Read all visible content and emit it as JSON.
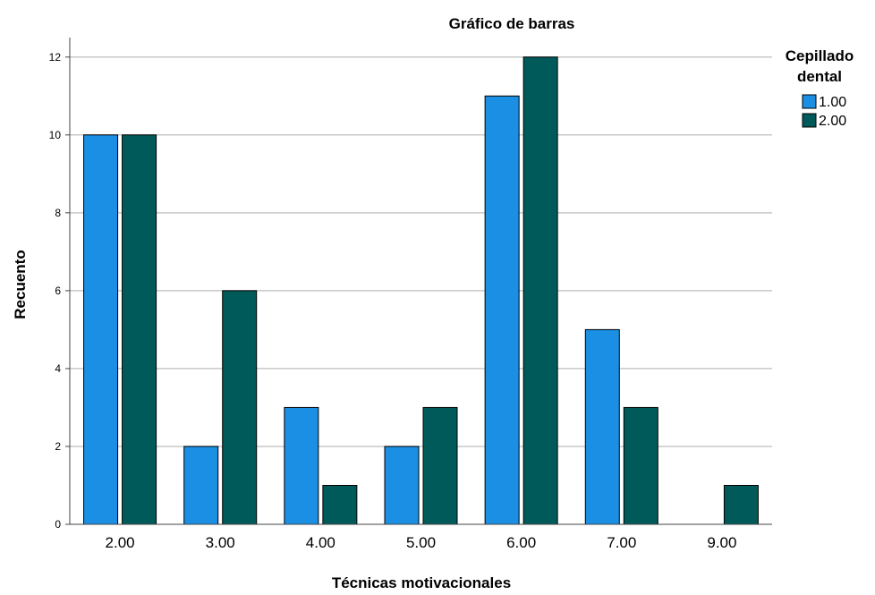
{
  "chart_data": {
    "type": "bar",
    "title": "Gráfico de barras",
    "xlabel": "Técnicas motivacionales",
    "ylabel": "Recuento",
    "categories": [
      "2.00",
      "3.00",
      "4.00",
      "5.00",
      "6.00",
      "7.00",
      "9.00"
    ],
    "series": [
      {
        "name": "1.00",
        "values": [
          10,
          2,
          3,
          2,
          11,
          5,
          0
        ],
        "color": "#1a8fe3"
      },
      {
        "name": "2.00",
        "values": [
          10,
          6,
          1,
          3,
          12,
          3,
          1
        ],
        "color": "#005a5a"
      }
    ],
    "ylim": [
      0,
      12.5
    ],
    "yticks": [
      "0",
      "2",
      "4",
      "6",
      "8",
      "10",
      "12"
    ],
    "grid": true,
    "legend": {
      "title_line1": "Cepillado",
      "title_line2": "dental",
      "placement": "right"
    }
  }
}
